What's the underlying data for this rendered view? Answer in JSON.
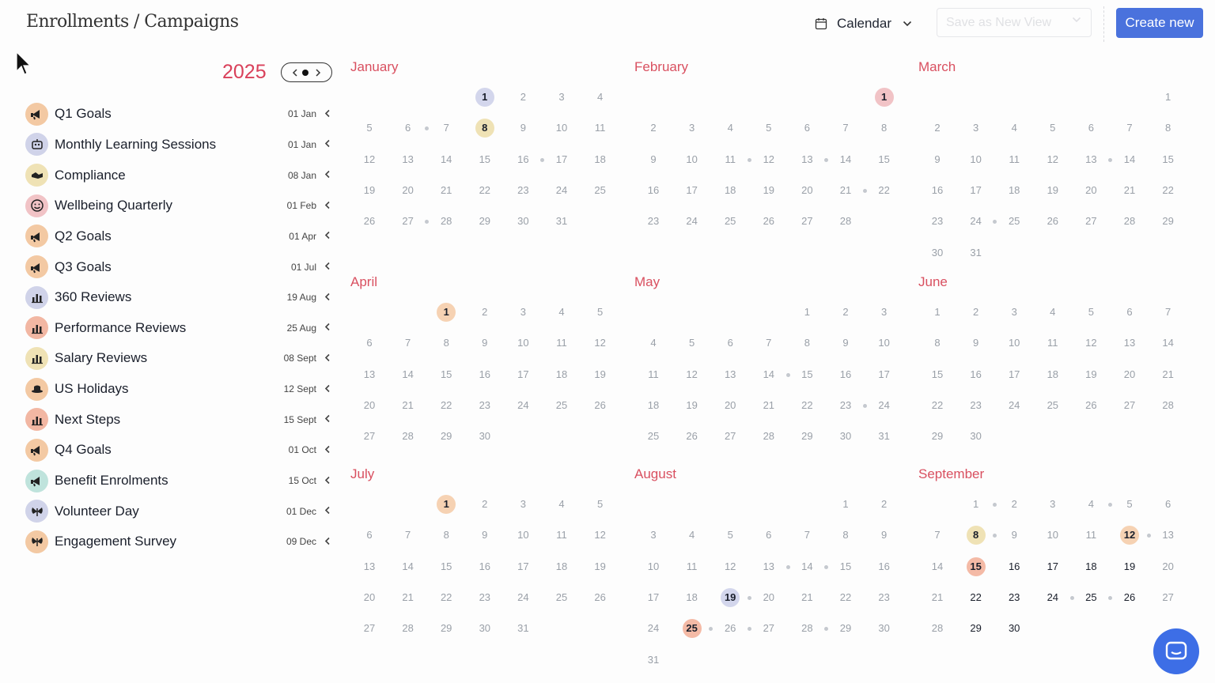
{
  "header": {
    "title": "Enrollments / Campaigns",
    "view_label": "Calendar",
    "save_view_label": "Save as New View",
    "create_label": "Create new"
  },
  "year": {
    "label": "2025",
    "prev_icon": "chevron-left-icon",
    "next_icon": "chevron-right-icon"
  },
  "campaigns": [
    {
      "name": "Q1 Goals",
      "date": "01 Jan",
      "icon": "megaphone-icon",
      "color": "#f3c9a3"
    },
    {
      "name": "Monthly Learning Sessions",
      "date": "01 Jan",
      "icon": "robot-icon",
      "color": "#d0d3e9"
    },
    {
      "name": "Compliance",
      "date": "08 Jan",
      "icon": "handshake-icon",
      "color": "#efe2b5"
    },
    {
      "name": "Wellbeing Quarterly",
      "date": "01 Feb",
      "icon": "smile-icon",
      "color": "#f1c3c6"
    },
    {
      "name": "Q2 Goals",
      "date": "01 Apr",
      "icon": "megaphone-icon",
      "color": "#f3c9a3"
    },
    {
      "name": "Q3 Goals",
      "date": "01 Jul",
      "icon": "megaphone-icon",
      "color": "#f3c9a3"
    },
    {
      "name": "360 Reviews",
      "date": "19 Aug",
      "icon": "bar-chart-icon",
      "color": "#d0d3e9"
    },
    {
      "name": "Performance Reviews",
      "date": "25 Aug",
      "icon": "bar-chart-icon",
      "color": "#f2b7a3"
    },
    {
      "name": "Salary Reviews",
      "date": "08 Sept",
      "icon": "bar-chart-icon",
      "color": "#efe2b5"
    },
    {
      "name": "US Holidays",
      "date": "12 Sept",
      "icon": "hat-icon",
      "color": "#f3c9a3"
    },
    {
      "name": "Next Steps",
      "date": "15 Sept",
      "icon": "bar-chart-icon",
      "color": "#f2b7a3"
    },
    {
      "name": "Q4 Goals",
      "date": "01 Oct",
      "icon": "megaphone-icon",
      "color": "#f3c9a3"
    },
    {
      "name": "Benefit Enrolments",
      "date": "15 Oct",
      "icon": "megaphone-icon",
      "color": "#bfe3dc"
    },
    {
      "name": "Volunteer Day",
      "date": "01 Dec",
      "icon": "butterfly-icon",
      "color": "#d0d3e9"
    },
    {
      "name": "Engagement Survey",
      "date": "09 Dec",
      "icon": "butterfly-icon",
      "color": "#f3c9a3"
    }
  ],
  "months": [
    {
      "name": "January",
      "start": 3,
      "days": 31,
      "marked": {
        "1": "#d3d6ec",
        "8": "#efe2b5"
      },
      "dots": [
        6,
        16,
        27
      ]
    },
    {
      "name": "February",
      "start": 6,
      "days": 28,
      "marked": {
        "1": "#f1c3c6"
      },
      "dots": [
        11,
        13,
        21
      ]
    },
    {
      "name": "March",
      "start": 6,
      "days": 31,
      "marked": {},
      "dots": [
        13,
        24
      ]
    },
    {
      "name": "April",
      "start": 2,
      "days": 30,
      "marked": {
        "1": "#f6d2b3"
      },
      "dots": []
    },
    {
      "name": "May",
      "start": 4,
      "days": 31,
      "marked": {},
      "dots": [
        14,
        23
      ]
    },
    {
      "name": "June",
      "start": 0,
      "days": 30,
      "marked": {},
      "dots": []
    },
    {
      "name": "July",
      "start": 2,
      "days": 31,
      "marked": {
        "1": "#f6d2b3"
      },
      "dots": []
    },
    {
      "name": "August",
      "start": 5,
      "days": 31,
      "marked": {
        "19": "#d3d6ec",
        "25": "#f4baa6"
      },
      "dots": [
        13,
        14,
        19,
        25,
        26,
        28
      ]
    },
    {
      "name": "September",
      "start": 1,
      "days": 30,
      "marked": {
        "8": "#efe2b5",
        "12": "#f6d2b3",
        "15": "#f4baa6"
      },
      "dots": [
        1,
        4,
        8,
        12,
        24,
        25
      ]
    }
  ],
  "colors": {
    "accent": "#4a72dd",
    "year": "#d9405a",
    "month_name": "#d95060"
  }
}
